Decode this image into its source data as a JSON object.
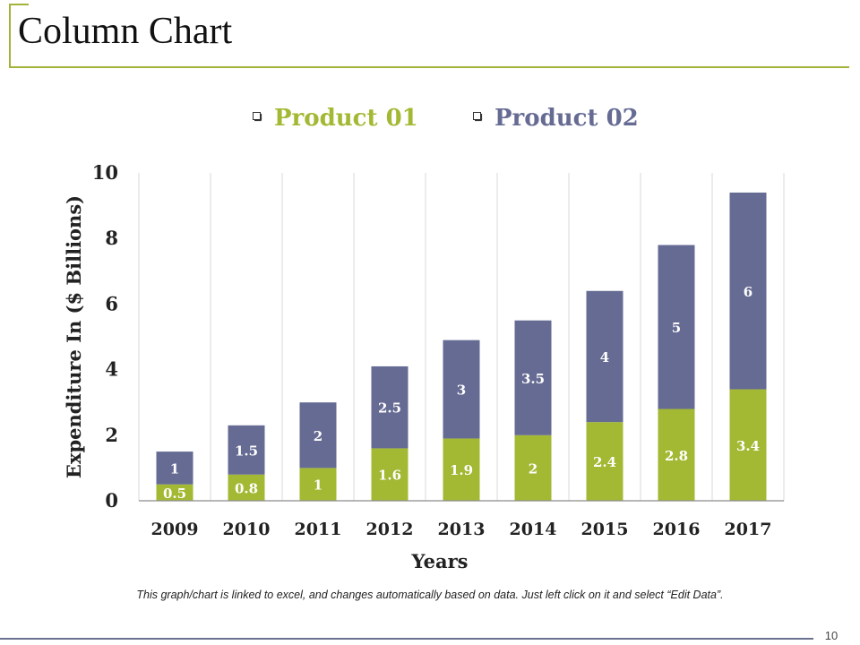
{
  "page": {
    "title": "Column Chart",
    "footnote": "This graph/chart is linked to excel, and changes automatically based on data. Just left click on it and select “Edit Data”.",
    "page_number": "10"
  },
  "colors": {
    "product01": "#a3b833",
    "product02": "#666b93",
    "accent": "#a3b33a",
    "grid": "#d9d9d9"
  },
  "chart_data": {
    "type": "bar",
    "stacked": true,
    "categories": [
      "2009",
      "2010",
      "2011",
      "2012",
      "2013",
      "2014",
      "2015",
      "2016",
      "2017"
    ],
    "series": [
      {
        "name": "Product 01",
        "values": [
          0.5,
          0.8,
          1,
          1.6,
          1.9,
          2,
          2.4,
          2.8,
          3.4
        ]
      },
      {
        "name": "Product 02",
        "values": [
          1,
          1.5,
          2,
          2.5,
          3,
          3.5,
          4,
          5,
          6
        ]
      }
    ],
    "xlabel": "Years",
    "ylabel": "Expenditure In ($ Billions)",
    "ylim": [
      0,
      10
    ],
    "yticks": [
      0,
      2,
      4,
      6,
      8,
      10
    ],
    "legend_position": "top",
    "grid": "vertical"
  }
}
